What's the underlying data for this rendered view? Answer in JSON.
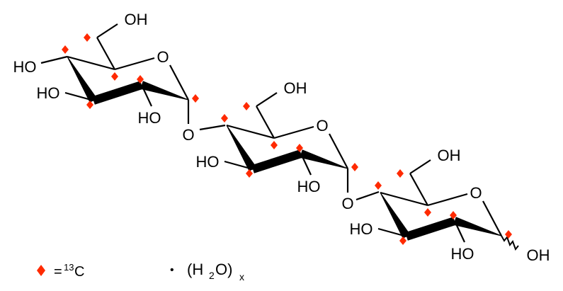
{
  "colors": {
    "label_marker": "#ff2a00",
    "bond": "#000000"
  },
  "structure": {
    "units": [
      {
        "labels": {
          "ring_o": "O",
          "c6_oh": "OH",
          "c4_sub": "HO",
          "c3_oh": "HO",
          "c2_oh": "HO",
          "glyco_o": "O"
        }
      },
      {
        "labels": {
          "ring_o": "O",
          "c6_oh": "OH",
          "c3_oh": "HO",
          "c2_oh": "HO",
          "glyco_o": "O"
        }
      },
      {
        "labels": {
          "ring_o": "O",
          "c6_oh": "OH",
          "c3_oh": "HO",
          "c2_oh": "HO",
          "anomeric_oh": "OH"
        }
      }
    ]
  },
  "legend": {
    "marker_icon": "red-diamond",
    "isotope_eq": "=",
    "isotope_mass": "13",
    "isotope_element": "C",
    "hydrate_dot": "•",
    "hydrate_open": "(H",
    "hydrate_sub": "2",
    "hydrate_close": "O)",
    "hydrate_x": "x"
  }
}
